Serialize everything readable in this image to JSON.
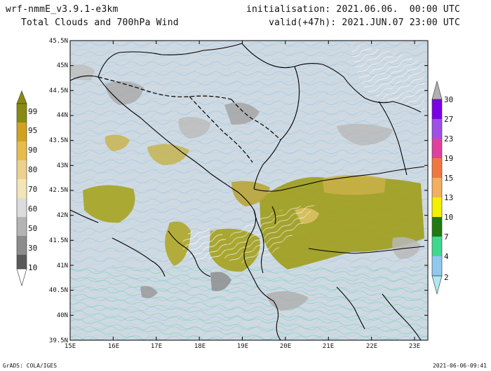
{
  "header": {
    "model": "wrf-nmmE_v3.9.1-e3km",
    "product": "Total Clouds and 700hPa Wind",
    "init_label": "initialisation: 2021.06.06.  00:00 UTC",
    "valid_label": "valid(+47h): 2021.JUN.07 23:00 UTC"
  },
  "footer": {
    "credit": "GrADS: COLA/IGES",
    "timestamp": "2021-06-06-09:41"
  },
  "map": {
    "lon_ticks": [
      "15E",
      "16E",
      "17E",
      "18E",
      "19E",
      "20E",
      "21E",
      "22E",
      "23E"
    ],
    "lat_ticks": [
      "45.5N",
      "45N",
      "44.5N",
      "44N",
      "43.5N",
      "43N",
      "42.5N",
      "42N",
      "41.5N",
      "41N",
      "40.5N",
      "40N",
      "39.5N"
    ],
    "ocean_color": "#d3dde5",
    "land_color": "#c8d2d8"
  },
  "cloud_colorbar": {
    "labels": [
      "99",
      "95",
      "90",
      "80",
      "70",
      "60",
      "50",
      "30",
      "10"
    ],
    "colors": [
      "#8a8a10",
      "#d2a21e",
      "#e6bc4a",
      "#eed08c",
      "#f2e6b6",
      "#dcdcdc",
      "#b4b4b4",
      "#8c8c8c",
      "#5a5a5a"
    ]
  },
  "wind_colorbar": {
    "labels": [
      "30",
      "27",
      "23",
      "19",
      "15",
      "13",
      "10",
      "7",
      "4",
      "2"
    ],
    "colors": [
      "#7a00e6",
      "#a050e6",
      "#e040a0",
      "#f07840",
      "#f0b060",
      "#f0f000",
      "#207a10",
      "#40d890",
      "#90c8f0",
      "#b0e8f0"
    ]
  }
}
